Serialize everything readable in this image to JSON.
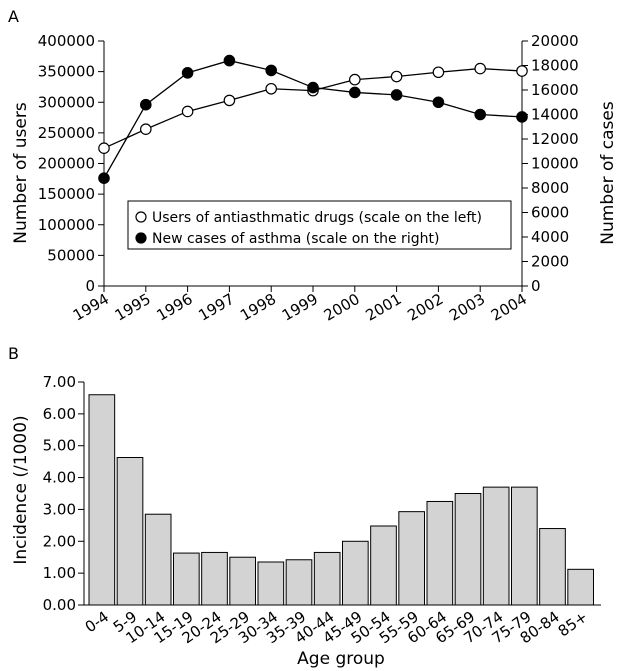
{
  "chart_data": [
    {
      "panel_label": "A",
      "type": "line",
      "x": [
        "1994",
        "1995",
        "1996",
        "1997",
        "1998",
        "1999",
        "2000",
        "2001",
        "2002",
        "2003",
        "2004"
      ],
      "xlabel": "",
      "ylabel": "Number of users",
      "y2label": "Number of cases",
      "ylim": [
        0,
        400000
      ],
      "y2lim": [
        0,
        20000
      ],
      "yticks": [
        "0",
        "50000",
        "100000",
        "150000",
        "200000",
        "250000",
        "300000",
        "350000",
        "400000"
      ],
      "y2ticks": [
        "0",
        "2000",
        "4000",
        "6000",
        "8000",
        "10000",
        "12000",
        "14000",
        "16000",
        "18000",
        "20000"
      ],
      "legend_position": "center-bottom",
      "series": [
        {
          "name": "Users of antiasthmatic drugs (scale on the left)",
          "axis": "left",
          "marker": "open-circle",
          "values": [
            225000,
            256000,
            285000,
            303000,
            322000,
            319000,
            337000,
            342000,
            349000,
            355000,
            351000
          ]
        },
        {
          "name": "New cases of asthma (scale on the right)",
          "axis": "right",
          "marker": "filled-circle",
          "values": [
            8800,
            14800,
            17400,
            18400,
            17600,
            16200,
            15800,
            15600,
            15000,
            14000,
            13800
          ]
        }
      ]
    },
    {
      "panel_label": "B",
      "type": "bar",
      "categories": [
        "0-4",
        "5-9",
        "10-14",
        "15-19",
        "20-24",
        "25-29",
        "30-34",
        "35-39",
        "40-44",
        "45-49",
        "50-54",
        "55-59",
        "60-64",
        "65-69",
        "70-74",
        "75-79",
        "80-84",
        "85+"
      ],
      "values": [
        6.6,
        4.63,
        2.85,
        1.63,
        1.65,
        1.5,
        1.35,
        1.42,
        1.65,
        2.0,
        2.48,
        2.93,
        3.25,
        3.5,
        3.7,
        3.7,
        2.4,
        1.12
      ],
      "xlabel": "Age group",
      "ylabel": "Incidence (/1000)",
      "ylim": [
        0,
        7
      ],
      "yticks": [
        "0.00",
        "1.00",
        "2.00",
        "3.00",
        "4.00",
        "5.00",
        "6.00",
        "7.00"
      ],
      "bar_color": "#d3d3d3"
    }
  ]
}
